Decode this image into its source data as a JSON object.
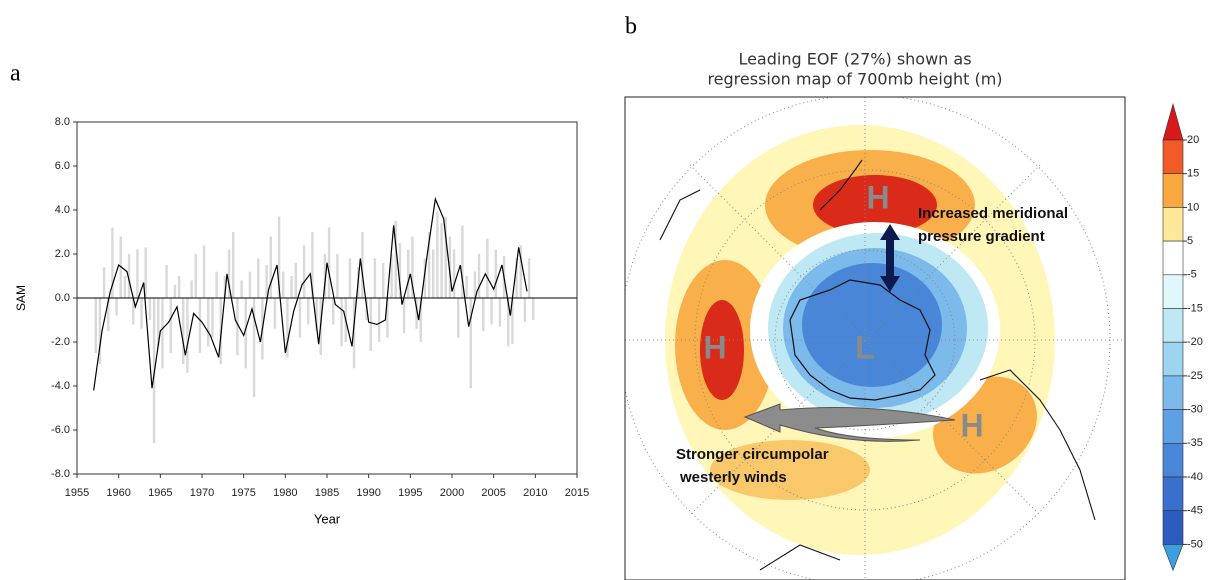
{
  "chart_data": [
    {
      "type": "combo",
      "panel_label": "a",
      "x_label": "Year",
      "y_label": "SAM",
      "xlim": [
        1955,
        2015
      ],
      "xticks": [
        1955,
        1960,
        1965,
        1970,
        1975,
        1980,
        1985,
        1990,
        1995,
        2000,
        2005,
        2010,
        2015
      ],
      "ylim": [
        -8,
        8
      ],
      "yticks": [
        {
          "value": -8,
          "label": "-8.0"
        },
        {
          "value": -6,
          "label": "-6.0"
        },
        {
          "value": -4,
          "label": "-4.0"
        },
        {
          "value": -2,
          "label": "-2.0"
        },
        {
          "value": 0,
          "label": "0.0"
        },
        {
          "value": 2,
          "label": "2.0"
        },
        {
          "value": 4,
          "label": "4.0"
        },
        {
          "value": 6,
          "label": "6.0"
        },
        {
          "value": 8,
          "label": "8.0"
        }
      ],
      "series": [
        {
          "type": "bar",
          "color": "#d9d9d9",
          "x": [
            1957.25,
            1957.75,
            1958.25,
            1958.75,
            1959.25,
            1959.75,
            1960.25,
            1960.75,
            1961.25,
            1961.75,
            1962.25,
            1962.75,
            1963.25,
            1963.75,
            1964.25,
            1964.75,
            1965.25,
            1965.75,
            1966.25,
            1966.75,
            1967.25,
            1967.75,
            1968.25,
            1968.75,
            1969.25,
            1969.75,
            1970.25,
            1970.75,
            1971.25,
            1971.75,
            1972.25,
            1972.75,
            1973.25,
            1973.75,
            1974.25,
            1974.75,
            1975.25,
            1975.75,
            1976.25,
            1976.75,
            1977.25,
            1977.75,
            1978.25,
            1978.75,
            1979.25,
            1979.75,
            1980.25,
            1980.75,
            1981.25,
            1981.75,
            1982.25,
            1982.75,
            1983.25,
            1983.75,
            1984.25,
            1984.75,
            1985.25,
            1985.75,
            1986.25,
            1986.75,
            1987.25,
            1987.75,
            1988.25,
            1988.75,
            1989.25,
            1989.75,
            1990.25,
            1990.75,
            1991.25,
            1991.75,
            1992.25,
            1992.75,
            1993.25,
            1993.75,
            1994.25,
            1994.75,
            1995.25,
            1995.75,
            1996.25,
            1996.75,
            1997.25,
            1997.75,
            1998.25,
            1998.75,
            1999.25,
            1999.75,
            2000.25,
            2000.75,
            2001.25,
            2001.75,
            2002.25,
            2002.75,
            2003.25,
            2003.75,
            2004.25,
            2004.75,
            2005.25,
            2005.75,
            2006.25,
            2006.75,
            2007.25,
            2007.75,
            2008.25,
            2008.75,
            2009.25,
            2009.75
          ],
          "values": [
            -2.5,
            -3.0,
            1.4,
            -1.5,
            3.2,
            -0.8,
            2.8,
            1.0,
            2.0,
            -1.2,
            2.2,
            -1.4,
            2.3,
            -1.0,
            -6.6,
            -2.2,
            -3.2,
            1.5,
            -2.5,
            0.6,
            1.0,
            -3.0,
            -3.4,
            0.8,
            2.0,
            -2.5,
            2.4,
            -2.2,
            -1.8,
            1.2,
            -3.0,
            1.0,
            2.2,
            3.0,
            -2.6,
            0.8,
            -3.2,
            1.2,
            -4.5,
            1.8,
            -2.8,
            1.5,
            2.8,
            -1.4,
            3.7,
            1.2,
            -2.7,
            1.0,
            1.6,
            -1.8,
            2.4,
            -1.2,
            3.0,
            -1.5,
            -2.6,
            2.0,
            3.2,
            -1.2,
            2.0,
            -2.2,
            -2.0,
            1.8,
            -3.2,
            1.4,
            3.0,
            -1.0,
            -2.4,
            1.8,
            -2.0,
            1.6,
            -1.8,
            2.0,
            3.5,
            2.5,
            -1.6,
            2.2,
            2.8,
            -1.4,
            -2.0,
            1.8,
            3.0,
            2.2,
            3.9,
            3.4,
            3.7,
            2.8,
            2.2,
            -1.8,
            3.3,
            1.0,
            -4.1,
            1.2,
            2.0,
            -1.5,
            2.7,
            -1.2,
            2.2,
            -1.3,
            1.9,
            -2.2,
            -2.1,
            1.8,
            2.4,
            -1.1,
            1.8,
            -1.0
          ]
        },
        {
          "type": "line",
          "color": "#000000",
          "x": [
            1957,
            1958,
            1959,
            1960,
            1961,
            1962,
            1963,
            1964,
            1965,
            1966,
            1967,
            1968,
            1969,
            1970,
            1971,
            1972,
            1973,
            1974,
            1975,
            1976,
            1977,
            1978,
            1979,
            1980,
            1981,
            1982,
            1983,
            1984,
            1985,
            1986,
            1987,
            1988,
            1989,
            1990,
            1991,
            1992,
            1993,
            1994,
            1995,
            1996,
            1997,
            1998,
            1999,
            2000,
            2001,
            2002,
            2003,
            2004,
            2005,
            2006,
            2007,
            2008,
            2009
          ],
          "values": [
            -4.2,
            -1.5,
            0.3,
            1.5,
            1.2,
            -0.4,
            0.7,
            -4.1,
            -1.5,
            -1.1,
            -0.4,
            -2.6,
            -0.7,
            -1.1,
            -1.7,
            -2.7,
            1.1,
            -1.0,
            -1.7,
            -0.5,
            -2.0,
            0.4,
            1.5,
            -2.5,
            -0.6,
            0.6,
            1.1,
            -2.1,
            1.6,
            -0.3,
            -0.6,
            -2.2,
            1.8,
            -1.1,
            -1.2,
            -1.0,
            3.3,
            -0.3,
            1.1,
            -1.0,
            1.9,
            4.5,
            3.6,
            0.3,
            1.5,
            -1.3,
            0.3,
            1.1,
            0.4,
            1.5,
            -0.8,
            2.3,
            0.3
          ]
        }
      ]
    }
  ],
  "panel_b": {
    "label": "b",
    "title": [
      "Leading EOF (27%) shown as",
      "regression map of 700mb height (m)"
    ],
    "highs": [
      "H",
      "H",
      "H"
    ],
    "low": "L",
    "annotation_gradient": [
      "Increased meridional",
      "pressure gradient"
    ],
    "annotation_winds": [
      "Stronger circumpolar",
      "westerly winds"
    ],
    "colorbar": {
      "labels": [
        20,
        15,
        10,
        5,
        -5,
        -15,
        -20,
        -25,
        -30,
        -35,
        -40,
        -45,
        -50
      ],
      "colors": [
        "#d7191c",
        "#f25b28",
        "#f9a83f",
        "#fee89a",
        "#ffffff",
        "#e0f7fb",
        "#bfe8f5",
        "#9dd4f0",
        "#7bbaea",
        "#5ea0e3",
        "#4a86d8",
        "#3b6fcc",
        "#2d5cc0",
        "#3aa0e0"
      ]
    }
  }
}
